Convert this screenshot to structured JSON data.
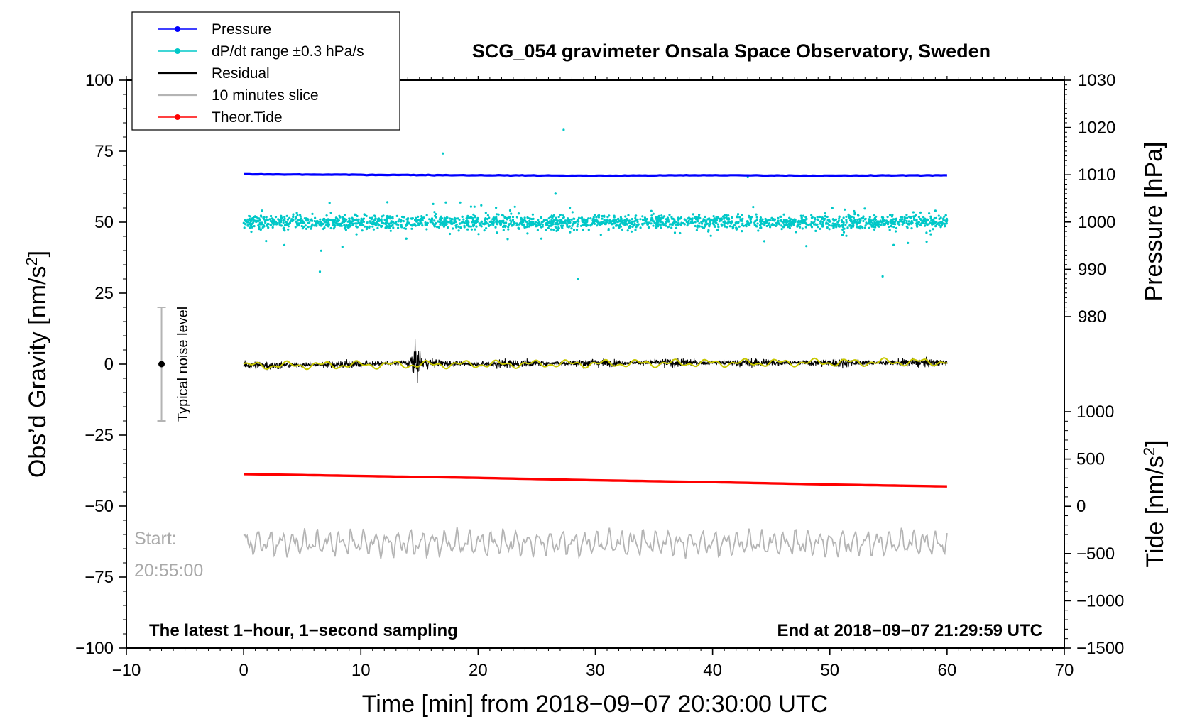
{
  "chart_data": {
    "type": "line",
    "title": "SCG_054 gravimeter Onsala Space Observatory, Sweden",
    "xlabel": "Time [min] from 2018−09−07 20:30:00 UTC",
    "ylabel_left": "Obs’d Gravity [nm/s²]",
    "ylabel_left_base": "Obs’d Gravity [nm/s",
    "ylabel_left_sup": "2",
    "ylabel_left_close": "]",
    "ylabel_pressure": "Pressure [hPa]",
    "ylabel_tide": "Tide [nm/s²]",
    "ylabel_tide_base": "Tide [nm/s",
    "ylabel_tide_sup": "2",
    "ylabel_tide_close": "]",
    "xlim": [
      -10,
      70
    ],
    "ylim": [
      -100,
      100
    ],
    "pressure_axis_range": [
      970,
      1030
    ],
    "tide_axis_range": [
      -1500,
      1000
    ],
    "x_ticks": [
      -10,
      0,
      10,
      20,
      30,
      40,
      50,
      60,
      70
    ],
    "x_tick_labels": [
      "−10",
      "0",
      "10",
      "20",
      "30",
      "40",
      "50",
      "60",
      "70"
    ],
    "y_ticks": [
      -100,
      -75,
      -50,
      -25,
      0,
      25,
      50,
      75,
      100
    ],
    "y_tick_labels": [
      "−100",
      "−75",
      "−50",
      "−25",
      "0",
      "25",
      "50",
      "75",
      "100"
    ],
    "pressure_ticks": [
      980,
      990,
      1000,
      1010,
      1020,
      1030
    ],
    "pressure_tick_labels": [
      "980",
      "990",
      "1000",
      "1010",
      "1020",
      "1030"
    ],
    "tide_ticks": [
      -1500,
      -1000,
      -500,
      0,
      500,
      1000
    ],
    "tide_tick_labels": [
      "−1500",
      "−1000",
      "−500",
      "0",
      "500",
      "1000"
    ],
    "legend": {
      "position": "top-left",
      "entries": [
        {
          "label": "Pressure",
          "color": "#0000ff",
          "marker": true
        },
        {
          "label": "dP/dt range ±0.3 hPa/s",
          "color": "#00c8c8",
          "marker": true
        },
        {
          "label": "Residual",
          "color": "#000000",
          "marker": false
        },
        {
          "label": "10 minutes slice",
          "color": "#b4b4b4",
          "marker": false
        },
        {
          "label": "Theor.Tide",
          "color": "#ff0000",
          "marker": true
        }
      ]
    },
    "series": [
      {
        "name": "Pressure",
        "axis": "pressure",
        "color": "#0000ff",
        "x": [
          0,
          10,
          20,
          30,
          40,
          50,
          60
        ],
        "values": [
          1010.1,
          1010.0,
          1009.9,
          1009.8,
          1009.9,
          1009.8,
          1009.9
        ]
      },
      {
        "name": "dP/dt range ±0.3 hPa/s",
        "axis": "pressure",
        "color": "#00c8c8",
        "center": 1000,
        "typical_spread": 1.2,
        "outlier_min": 990.5,
        "outlier_max": 1021.5
      },
      {
        "name": "Residual",
        "axis": "gravity",
        "color": "#000000",
        "x": [
          0,
          10,
          14.7,
          20,
          30,
          40,
          50,
          60
        ],
        "values": [
          -0.5,
          0,
          0.5,
          0,
          0.5,
          0.5,
          0.5,
          0.5
        ],
        "noise_amplitude": 2.5,
        "max_excursion": [
          -8,
          9
        ]
      },
      {
        "name": "Residual smoothed",
        "axis": "gravity",
        "color": "#c8c800",
        "x": [
          0,
          60
        ],
        "values": [
          -0.5,
          0.8
        ]
      },
      {
        "name": "Theor.Tide",
        "axis": "tide",
        "color": "#ff0000",
        "x": [
          0,
          10,
          20,
          30,
          40,
          50,
          60
        ],
        "values": [
          340,
          320,
          300,
          275,
          255,
          230,
          210
        ]
      },
      {
        "name": "10 minutes slice",
        "axis": "gravity",
        "color": "#b4b4b4",
        "center": -63,
        "amplitude": 5
      }
    ],
    "noise_indicator": {
      "label": "Typical noise level",
      "x": -7,
      "center": 0,
      "range": [
        -20,
        20
      ]
    },
    "start_label_line1": "Start:",
    "start_label_line2": "20:55:00",
    "bottom_left_note": "The latest 1−hour, 1−second sampling",
    "bottom_right_note": "End at 2018−09−07 21:29:59 UTC"
  }
}
